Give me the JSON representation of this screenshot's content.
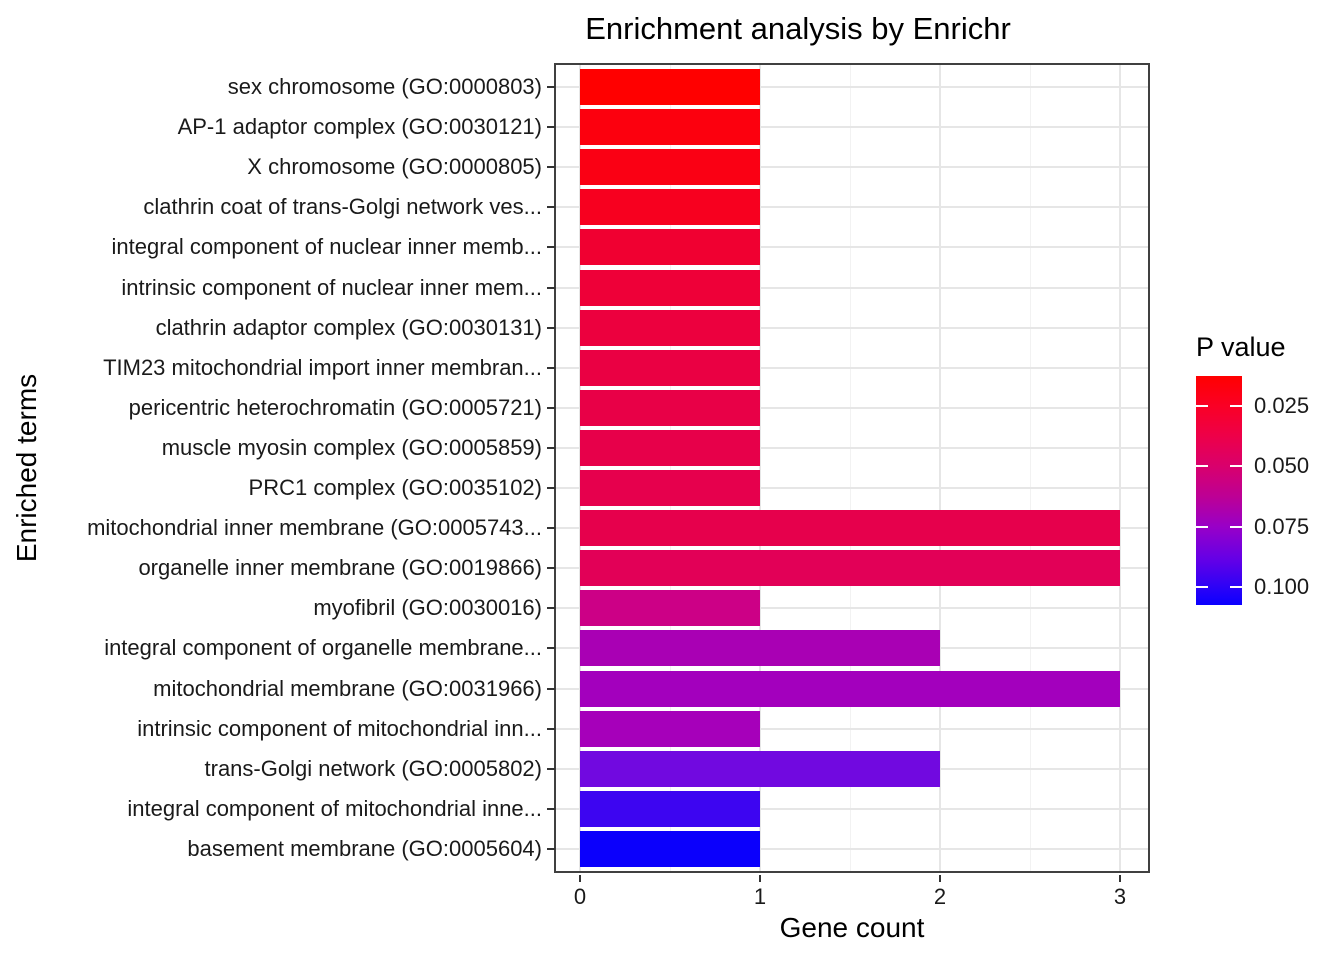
{
  "chart_data": {
    "type": "bar",
    "orientation": "horizontal",
    "title": "Enrichment analysis by Enrichr",
    "xlabel": "Gene count",
    "ylabel": "Enriched terms",
    "xlim": [
      0,
      3
    ],
    "x_ticks": [
      0,
      1,
      2,
      3
    ],
    "x_minor_ticks": [
      0.5,
      1.5,
      2.5
    ],
    "grid": true,
    "legend_position": "right",
    "bar_width_fraction": 0.9,
    "categories": [
      "sex chromosome (GO:0000803)",
      "AP-1 adaptor complex (GO:0030121)",
      "X chromosome (GO:0000805)",
      "clathrin coat of trans-Golgi network ves...",
      "integral component of nuclear inner memb...",
      "intrinsic component of nuclear inner mem...",
      "clathrin adaptor complex (GO:0030131)",
      "TIM23 mitochondrial import inner membran...",
      "pericentric heterochromatin (GO:0005721)",
      "muscle myosin complex (GO:0005859)",
      "PRC1 complex (GO:0035102)",
      "mitochondrial inner membrane (GO:0005743...",
      "organelle inner membrane (GO:0019866)",
      "myofibril (GO:0030016)",
      "integral component of organelle membrane...",
      "mitochondrial membrane (GO:0031966)",
      "intrinsic component of mitochondrial inn...",
      "trans-Golgi network (GO:0005802)",
      "integral component of mitochondrial inne...",
      "basement membrane (GO:0005604)"
    ],
    "values": [
      1,
      1,
      1,
      1,
      1,
      1,
      1,
      1,
      1,
      1,
      1,
      3,
      3,
      1,
      2,
      3,
      1,
      2,
      1,
      1
    ],
    "bar_colors": [
      "#FF0000",
      "#FC000E",
      "#FA0014",
      "#F7001F",
      "#F00031",
      "#EE0038",
      "#EC003E",
      "#EA0043",
      "#E80047",
      "#E7004A",
      "#E6004D",
      "#E6004C",
      "#E20057",
      "#CC0086",
      "#A900B4",
      "#A300BD",
      "#A600BA",
      "#7109E0",
      "#3D05F1",
      "#0B00FC"
    ],
    "color_scale": {
      "title": "P value",
      "low_value_color": "#FF0000",
      "high_value_color": "#0000FF",
      "tick_labels": [
        "0.025",
        "0.050",
        "0.075",
        "0.100"
      ],
      "tick_values": [
        0.025,
        0.05,
        0.075,
        0.1
      ],
      "range": [
        0.0125,
        0.1075
      ],
      "gradient_stops": [
        {
          "pos": 0.0,
          "color": "#FF0000"
        },
        {
          "pos": 0.13,
          "color": "#FA0025"
        },
        {
          "pos": 0.26,
          "color": "#EE0048"
        },
        {
          "pos": 0.4,
          "color": "#D8006E"
        },
        {
          "pos": 0.53,
          "color": "#BC0096"
        },
        {
          "pos": 0.66,
          "color": "#9800C8"
        },
        {
          "pos": 0.8,
          "color": "#6400E6"
        },
        {
          "pos": 0.92,
          "color": "#2E02F6"
        },
        {
          "pos": 1.0,
          "color": "#0A00FF"
        }
      ]
    }
  }
}
